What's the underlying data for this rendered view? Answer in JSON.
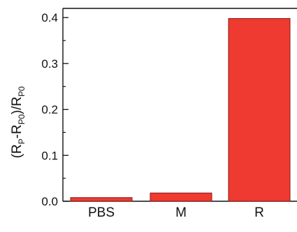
{
  "chart_data": {
    "type": "bar",
    "categories": [
      "PBS",
      "M",
      "R"
    ],
    "values": [
      0.008,
      0.018,
      0.398
    ],
    "ylabel": {
      "open": "(R",
      "sub1": "P",
      "minus": "-R",
      "sub2": "P0",
      "close": ")/R",
      "sub3": "P0"
    },
    "ylim": [
      0,
      0.42
    ],
    "yticks": [
      {
        "value": 0.0,
        "label": "0.0"
      },
      {
        "value": 0.1,
        "label": "0.1"
      },
      {
        "value": 0.2,
        "label": "0.2"
      },
      {
        "value": 0.3,
        "label": "0.3"
      },
      {
        "value": 0.4,
        "label": "0.4"
      }
    ],
    "bar_color": "#ee3a30",
    "grid": false,
    "legend": "none"
  }
}
